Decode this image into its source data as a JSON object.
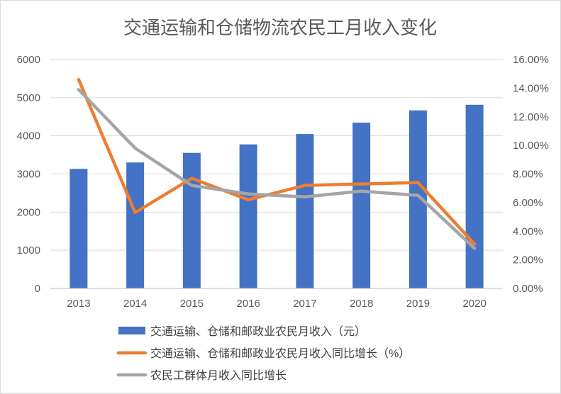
{
  "chart_data": {
    "type": "bar",
    "title": "交通运输和仓储物流农民工月收入变化",
    "categories": [
      "2013",
      "2014",
      "2015",
      "2016",
      "2017",
      "2018",
      "2019",
      "2020"
    ],
    "y_left": {
      "ylim": [
        0,
        6000
      ],
      "ticks": [
        "0",
        "1000",
        "2000",
        "3000",
        "4000",
        "5000",
        "6000"
      ]
    },
    "y_right": {
      "ylim": [
        0,
        16
      ],
      "unit": "%",
      "ticks": [
        "0.00%",
        "2.00%",
        "4.00%",
        "6.00%",
        "8.00%",
        "10.00%",
        "12.00%",
        "14.00%",
        "16.00%"
      ]
    },
    "series": [
      {
        "name": "交通运输、仓储和邮政业农民月收入（元）",
        "kind": "bar",
        "axis": "left",
        "color": "#4472c4",
        "values": [
          3133,
          3301,
          3553,
          3775,
          4048,
          4345,
          4667,
          4814
        ]
      },
      {
        "name": "交通运输、仓储和邮政业农民月收入同比增长（%）",
        "kind": "line",
        "axis": "right",
        "color": "#ed7d31",
        "values": [
          14.6,
          5.3,
          7.7,
          6.2,
          7.2,
          7.3,
          7.4,
          3.1
        ]
      },
      {
        "name": "农民工群体月收入同比增长",
        "kind": "line",
        "axis": "right",
        "color": "#a5a5a5",
        "values": [
          13.9,
          9.8,
          7.2,
          6.6,
          6.4,
          6.8,
          6.5,
          2.8
        ]
      }
    ],
    "grid": true,
    "legend_position": "bottom"
  }
}
